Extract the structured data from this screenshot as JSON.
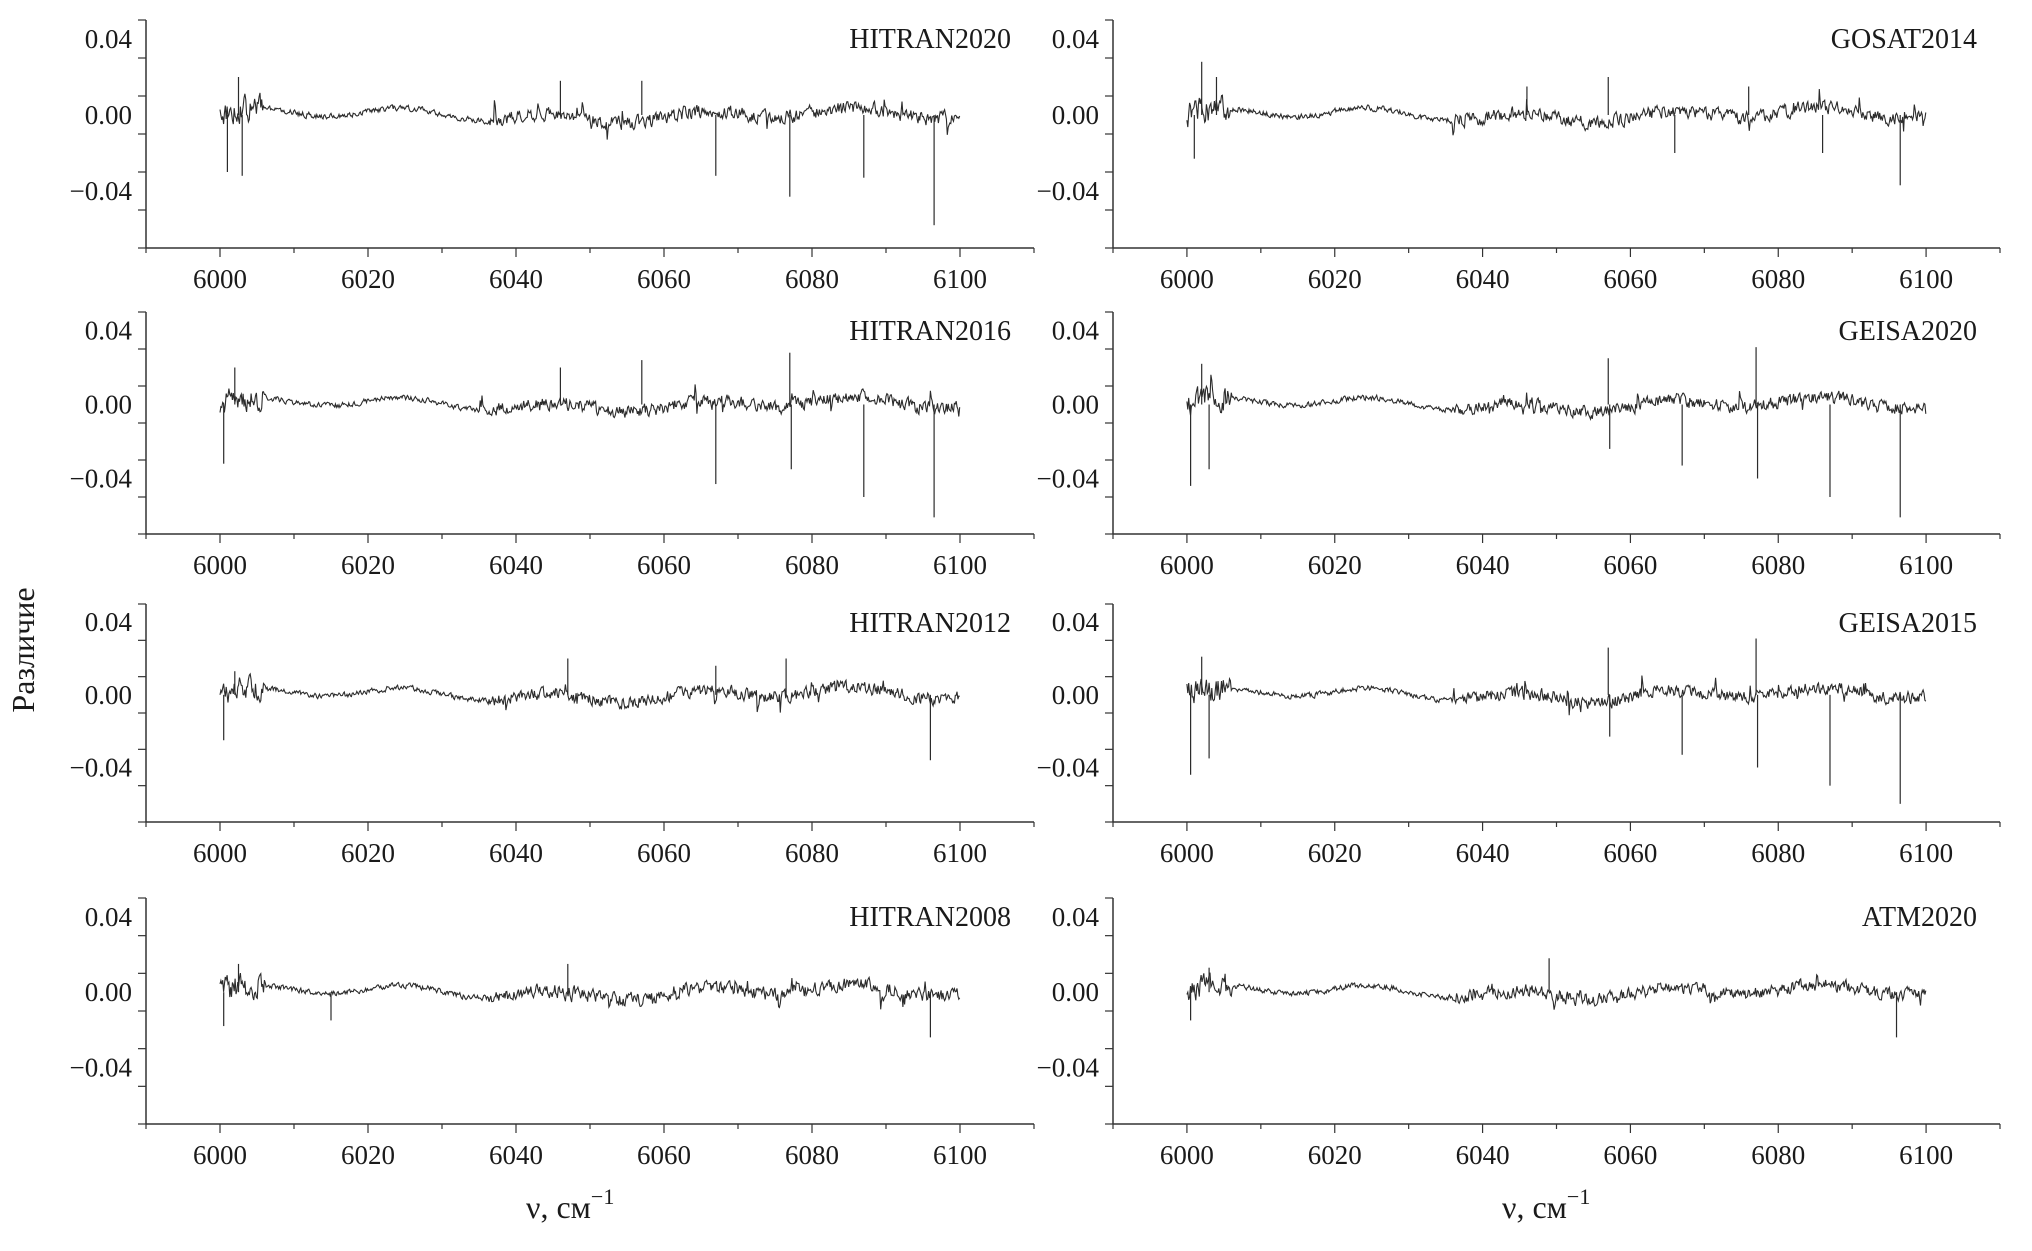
{
  "figure": {
    "ylabel": "Различие",
    "xlabel_left": "ν, см",
    "xlabel_right": "ν, см",
    "xlabel_superscript": "−1"
  },
  "colors": {
    "line": "#2b2b2b",
    "axis": "#333333"
  },
  "chart_data": [
    {
      "type": "line",
      "label": "HITRAN2020",
      "column": "left",
      "row": 0,
      "x_ticks": [
        "6000",
        "6020",
        "6040",
        "6060",
        "6080",
        "6100"
      ],
      "y_ticks": [
        "0.04",
        "0.00",
        "−0.04"
      ],
      "xlim": [
        5990,
        6110
      ],
      "ylim": [
        -0.07,
        0.05
      ],
      "x_range": [
        6000,
        6100
      ],
      "noise": 0.004,
      "spikes": [
        {
          "x": 6001.0,
          "y": -0.03
        },
        {
          "x": 6002.5,
          "y": 0.02
        },
        {
          "x": 6003.0,
          "y": -0.032
        },
        {
          "x": 6046.0,
          "y": 0.018
        },
        {
          "x": 6057.0,
          "y": 0.018
        },
        {
          "x": 6067.0,
          "y": -0.032
        },
        {
          "x": 6077.0,
          "y": -0.043
        },
        {
          "x": 6087.0,
          "y": -0.033
        },
        {
          "x": 6096.5,
          "y": -0.058
        }
      ]
    },
    {
      "type": "line",
      "label": "HITRAN2016",
      "column": "left",
      "row": 1,
      "x_ticks": [
        "6000",
        "6020",
        "6040",
        "6060",
        "6080",
        "6100"
      ],
      "y_ticks": [
        "0.04",
        "0.00",
        "−0.04"
      ],
      "xlim": [
        5990,
        6110
      ],
      "ylim": [
        -0.07,
        0.05
      ],
      "x_range": [
        6000,
        6100
      ],
      "noise": 0.004,
      "spikes": [
        {
          "x": 6000.5,
          "y": -0.032
        },
        {
          "x": 6002.0,
          "y": 0.02
        },
        {
          "x": 6046.0,
          "y": 0.02
        },
        {
          "x": 6057.0,
          "y": 0.024
        },
        {
          "x": 6067.0,
          "y": -0.043
        },
        {
          "x": 6077.0,
          "y": 0.028
        },
        {
          "x": 6077.2,
          "y": -0.035
        },
        {
          "x": 6087.0,
          "y": -0.05
        },
        {
          "x": 6096.5,
          "y": -0.061
        }
      ]
    },
    {
      "type": "line",
      "label": "HITRAN2012",
      "column": "left",
      "row": 2,
      "x_ticks": [
        "6000",
        "6020",
        "6040",
        "6060",
        "6080",
        "6100"
      ],
      "y_ticks": [
        "0.04",
        "0.00",
        "−0.04"
      ],
      "xlim": [
        5990,
        6110
      ],
      "ylim": [
        -0.07,
        0.05
      ],
      "x_range": [
        6000,
        6100
      ],
      "noise": 0.004,
      "spikes": [
        {
          "x": 6000.5,
          "y": -0.025
        },
        {
          "x": 6002.0,
          "y": 0.013
        },
        {
          "x": 6047.0,
          "y": 0.02
        },
        {
          "x": 6067.0,
          "y": 0.016
        },
        {
          "x": 6076.5,
          "y": 0.02
        },
        {
          "x": 6096.0,
          "y": -0.036
        }
      ]
    },
    {
      "type": "line",
      "label": "HITRAN2008",
      "column": "left",
      "row": 3,
      "x_ticks": [
        "6000",
        "6020",
        "6040",
        "6060",
        "6080",
        "6100"
      ],
      "y_ticks": [
        "0.04",
        "0.00",
        "−0.04"
      ],
      "xlim": [
        5990,
        6110
      ],
      "ylim": [
        -0.07,
        0.05
      ],
      "x_range": [
        6000,
        6100
      ],
      "noise": 0.004,
      "spikes": [
        {
          "x": 6000.5,
          "y": -0.018
        },
        {
          "x": 6002.5,
          "y": 0.015
        },
        {
          "x": 6015.0,
          "y": -0.015
        },
        {
          "x": 6047.0,
          "y": 0.015
        },
        {
          "x": 6096.0,
          "y": -0.024
        }
      ]
    },
    {
      "type": "line",
      "label": "GOSAT2014",
      "column": "right",
      "row": 0,
      "x_ticks": [
        "6000",
        "6020",
        "6040",
        "6060",
        "6080",
        "6100"
      ],
      "y_ticks": [
        "0.04",
        "0.00",
        "−0.04"
      ],
      "xlim": [
        5990,
        6110
      ],
      "ylim": [
        -0.07,
        0.05
      ],
      "x_range": [
        6000,
        6100
      ],
      "noise": 0.004,
      "spikes": [
        {
          "x": 6001.0,
          "y": -0.023
        },
        {
          "x": 6002.0,
          "y": 0.028
        },
        {
          "x": 6004.0,
          "y": 0.02
        },
        {
          "x": 6046.0,
          "y": 0.015
        },
        {
          "x": 6057.0,
          "y": 0.02
        },
        {
          "x": 6066.0,
          "y": -0.02
        },
        {
          "x": 6076.0,
          "y": 0.015
        },
        {
          "x": 6086.0,
          "y": -0.02
        },
        {
          "x": 6096.5,
          "y": -0.037
        }
      ]
    },
    {
      "type": "line",
      "label": "GEISA2020",
      "column": "right",
      "row": 1,
      "x_ticks": [
        "6000",
        "6020",
        "6040",
        "6060",
        "6080",
        "6100"
      ],
      "y_ticks": [
        "0.04",
        "0.00",
        "−0.04"
      ],
      "xlim": [
        5990,
        6110
      ],
      "ylim": [
        -0.07,
        0.05
      ],
      "x_range": [
        6000,
        6100
      ],
      "noise": 0.004,
      "spikes": [
        {
          "x": 6000.5,
          "y": -0.044
        },
        {
          "x": 6002.0,
          "y": 0.022
        },
        {
          "x": 6003.0,
          "y": -0.035
        },
        {
          "x": 6057.0,
          "y": 0.025
        },
        {
          "x": 6057.2,
          "y": -0.024
        },
        {
          "x": 6067.0,
          "y": -0.033
        },
        {
          "x": 6077.0,
          "y": 0.031
        },
        {
          "x": 6077.2,
          "y": -0.04
        },
        {
          "x": 6087.0,
          "y": -0.05
        },
        {
          "x": 6096.5,
          "y": -0.061
        }
      ]
    },
    {
      "type": "line",
      "label": "GEISA2015",
      "column": "right",
      "row": 2,
      "x_ticks": [
        "6000",
        "6020",
        "6040",
        "6060",
        "6080",
        "6100"
      ],
      "y_ticks": [
        "0.04",
        "0.00",
        "−0.04"
      ],
      "xlim": [
        5990,
        6110
      ],
      "ylim": [
        -0.07,
        0.05
      ],
      "x_range": [
        6000,
        6100
      ],
      "noise": 0.004,
      "spikes": [
        {
          "x": 6000.5,
          "y": -0.044
        },
        {
          "x": 6002.0,
          "y": 0.021
        },
        {
          "x": 6003.0,
          "y": -0.035
        },
        {
          "x": 6057.0,
          "y": 0.026
        },
        {
          "x": 6057.2,
          "y": -0.023
        },
        {
          "x": 6067.0,
          "y": -0.033
        },
        {
          "x": 6077.0,
          "y": 0.031
        },
        {
          "x": 6077.2,
          "y": -0.04
        },
        {
          "x": 6087.0,
          "y": -0.05
        },
        {
          "x": 6096.5,
          "y": -0.06
        }
      ]
    },
    {
      "type": "line",
      "label": "ATM2020",
      "column": "right",
      "row": 3,
      "x_ticks": [
        "6000",
        "6020",
        "6040",
        "6060",
        "6080",
        "6100"
      ],
      "y_ticks": [
        "0.04",
        "0.00",
        "−0.04"
      ],
      "xlim": [
        5990,
        6110
      ],
      "ylim": [
        -0.07,
        0.05
      ],
      "x_range": [
        6000,
        6100
      ],
      "noise": 0.004,
      "spikes": [
        {
          "x": 6000.5,
          "y": -0.015
        },
        {
          "x": 6003.0,
          "y": 0.013
        },
        {
          "x": 6049.0,
          "y": 0.018
        },
        {
          "x": 6096.0,
          "y": -0.024
        }
      ]
    }
  ]
}
